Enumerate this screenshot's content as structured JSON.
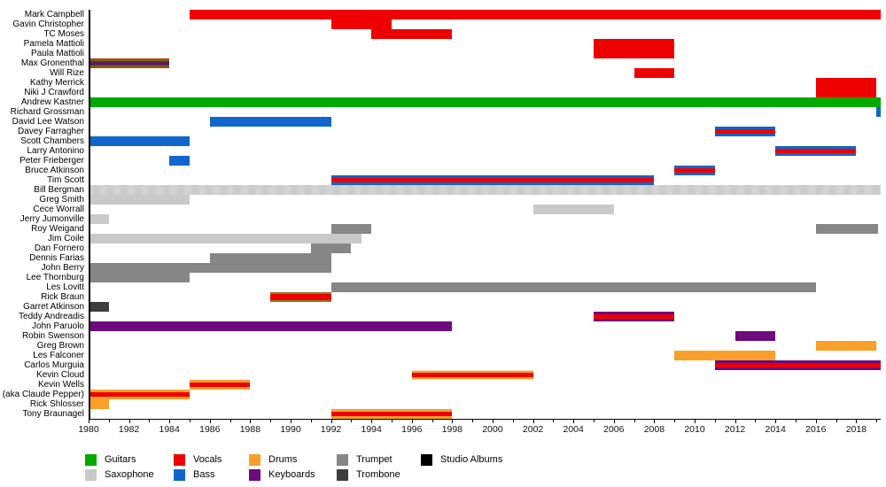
{
  "chart_data": {
    "type": "timeline",
    "title": "",
    "x_axis": {
      "start_year": 1980,
      "end_year": 2019.2,
      "labeled_ticks": [
        1980,
        1982,
        1984,
        1986,
        1988,
        1990,
        1992,
        1994,
        1996,
        1998,
        2000,
        2002,
        2004,
        2006,
        2008,
        2010,
        2012,
        2014,
        2016,
        2018
      ],
      "minor_tick_every": 1
    },
    "colors": {
      "guitars": "#00aa00",
      "vocals": "#ee0000",
      "drums": "#f8a02a",
      "trumpet": "#868686",
      "studio_albums": "#000000",
      "saxophone": "#c9c9c9",
      "bass": "#1166cc",
      "keyboards": "#6e0a7e",
      "trombone": "#3d3d3d"
    },
    "legend": [
      {
        "label": "Guitars",
        "key": "guitars",
        "row": 0,
        "col": 0
      },
      {
        "label": "Saxophone",
        "key": "saxophone",
        "row": 1,
        "col": 0
      },
      {
        "label": "Vocals",
        "key": "vocals",
        "row": 0,
        "col": 1
      },
      {
        "label": "Bass",
        "key": "bass",
        "row": 1,
        "col": 1
      },
      {
        "label": "Drums",
        "key": "drums",
        "row": 0,
        "col": 2
      },
      {
        "label": "Keyboards",
        "key": "keyboards",
        "row": 1,
        "col": 2
      },
      {
        "label": "Trumpet",
        "key": "trumpet",
        "row": 0,
        "col": 3
      },
      {
        "label": "Trombone",
        "key": "trombone",
        "row": 1,
        "col": 3
      },
      {
        "label": "Studio Albums",
        "key": "studio_albums",
        "row": 0,
        "col": 4
      }
    ],
    "members": [
      {
        "name": "Mark Campbell",
        "bars": [
          {
            "start": 1985,
            "end": 2019.2,
            "kind": "vocals"
          }
        ]
      },
      {
        "name": "Gavin Christopher",
        "bars": [
          {
            "start": 1992,
            "end": 1995,
            "kind": "vocals"
          }
        ]
      },
      {
        "name": "TC Moses",
        "bars": [
          {
            "start": 1994,
            "end": 1998,
            "kind": "vocals"
          }
        ]
      },
      {
        "name": "Pamela Mattioli",
        "bars": [
          {
            "start": 2005,
            "end": 2009,
            "kind": "vocals"
          }
        ]
      },
      {
        "name": "Paula Mattioli",
        "bars": [
          {
            "start": 2005,
            "end": 2009,
            "kind": "vocals"
          }
        ]
      },
      {
        "name": "Max Gronenthal",
        "bars": [
          {
            "start": 1980,
            "end": 1984,
            "kind": "multi_stripes"
          }
        ]
      },
      {
        "name": "Will Rize",
        "bars": [
          {
            "start": 2007,
            "end": 2009,
            "kind": "vocals"
          }
        ]
      },
      {
        "name": "Kathy Merrick",
        "bars": [
          {
            "start": 2016,
            "end": 2019,
            "kind": "vocals"
          }
        ]
      },
      {
        "name": "Niki J Crawford",
        "bars": [
          {
            "start": 2016,
            "end": 2019,
            "kind": "vocals"
          }
        ]
      },
      {
        "name": "Andrew Kastner",
        "bars": [
          {
            "start": 1980,
            "end": 2019.2,
            "kind": "guitars"
          }
        ]
      },
      {
        "name": "Richard Grossman",
        "bars": [
          {
            "start": 2019,
            "end": 2019.2,
            "kind": "bass"
          }
        ]
      },
      {
        "name": "David Lee Watson",
        "bars": [
          {
            "start": 1986,
            "end": 1992,
            "kind": "bass"
          }
        ]
      },
      {
        "name": "Davey Farragher",
        "bars": [
          {
            "start": 2011,
            "end": 2014,
            "kind": "bass_vocals"
          }
        ]
      },
      {
        "name": "Scott Chambers",
        "bars": [
          {
            "start": 1980,
            "end": 1985,
            "kind": "bass"
          }
        ]
      },
      {
        "name": "Larry Antonino",
        "bars": [
          {
            "start": 2014,
            "end": 2018,
            "kind": "bass_vocals"
          }
        ]
      },
      {
        "name": "Peter Frieberger",
        "bars": [
          {
            "start": 1984,
            "end": 1985,
            "kind": "bass"
          }
        ]
      },
      {
        "name": "Bruce Atkinson",
        "bars": [
          {
            "start": 2009,
            "end": 2011,
            "kind": "bass_vocals"
          }
        ]
      },
      {
        "name": "Tim Scott",
        "bars": [
          {
            "start": 1992,
            "end": 2008,
            "kind": "bass_vocals"
          }
        ]
      },
      {
        "name": "Bill Bergman",
        "bars": [
          {
            "start": 1980,
            "end": 2019.2,
            "kind": "sax_shaded"
          }
        ]
      },
      {
        "name": "Greg Smith",
        "bars": [
          {
            "start": 1980,
            "end": 1985,
            "kind": "saxophone"
          }
        ]
      },
      {
        "name": "Cece Worrall",
        "bars": [
          {
            "start": 2002,
            "end": 2006,
            "kind": "saxophone"
          }
        ]
      },
      {
        "name": "Jerry Jumonville",
        "bars": [
          {
            "start": 1980,
            "end": 1981,
            "kind": "saxophone"
          }
        ]
      },
      {
        "name": "Roy Weigand",
        "bars": [
          {
            "start": 1992,
            "end": 1994,
            "kind": "trumpet"
          },
          {
            "start": 2016,
            "end": 2019.1,
            "kind": "trumpet"
          }
        ]
      },
      {
        "name": "Jim Coile",
        "bars": [
          {
            "start": 1980,
            "end": 1993.5,
            "kind": "saxophone"
          }
        ]
      },
      {
        "name": "Dan Fornero",
        "bars": [
          {
            "start": 1991,
            "end": 1993,
            "kind": "trumpet"
          }
        ]
      },
      {
        "name": "Dennis Farias",
        "bars": [
          {
            "start": 1986,
            "end": 1992,
            "kind": "trumpet"
          }
        ]
      },
      {
        "name": "John Berry",
        "bars": [
          {
            "start": 1980,
            "end": 1992,
            "kind": "trumpet"
          }
        ]
      },
      {
        "name": "Lee Thornburg",
        "bars": [
          {
            "start": 1980,
            "end": 1985,
            "kind": "trumpet"
          }
        ]
      },
      {
        "name": "Les Lovitt",
        "bars": [
          {
            "start": 1992,
            "end": 2016,
            "kind": "trumpet"
          }
        ]
      },
      {
        "name": "Rick Braun",
        "bars": [
          {
            "start": 1989,
            "end": 1992,
            "kind": "trumpet_vocals"
          }
        ]
      },
      {
        "name": "Garret Atkinson",
        "bars": [
          {
            "start": 1980,
            "end": 1981,
            "kind": "trombone"
          }
        ]
      },
      {
        "name": "Teddy Andreadis",
        "bars": [
          {
            "start": 2005,
            "end": 2009,
            "kind": "keyboards_vocals"
          }
        ]
      },
      {
        "name": "John Paruolo",
        "bars": [
          {
            "start": 1980,
            "end": 1998,
            "kind": "keyboards"
          }
        ]
      },
      {
        "name": "Robin Swenson",
        "bars": [
          {
            "start": 2012,
            "end": 2014,
            "kind": "keyboards"
          }
        ]
      },
      {
        "name": "Greg Brown",
        "bars": [
          {
            "start": 2016,
            "end": 2019,
            "kind": "drums"
          }
        ]
      },
      {
        "name": "Les Falconer",
        "bars": [
          {
            "start": 2009,
            "end": 2014,
            "kind": "drums"
          }
        ]
      },
      {
        "name": "Carlos Murguia",
        "bars": [
          {
            "start": 2011,
            "end": 2019.2,
            "kind": "keyboards_vocals"
          }
        ]
      },
      {
        "name": "Kevin Cloud",
        "bars": [
          {
            "start": 1996,
            "end": 2002,
            "kind": "drums_vocals_fuzzy"
          }
        ]
      },
      {
        "name": "Kevin Wells",
        "bars": [
          {
            "start": 1985,
            "end": 1988,
            "kind": "drums_vocals"
          }
        ]
      },
      {
        "name": "(aka Claude Pepper)",
        "bars": [
          {
            "start": 1980,
            "end": 1985,
            "kind": "drums_vocals"
          }
        ]
      },
      {
        "name": "Rick Shlosser",
        "bars": [
          {
            "start": 1980,
            "end": 1981,
            "kind": "drums"
          }
        ]
      },
      {
        "name": "Tony Braunagel",
        "bars": [
          {
            "start": 1992,
            "end": 1998,
            "kind": "drums_vocals"
          }
        ]
      }
    ]
  }
}
